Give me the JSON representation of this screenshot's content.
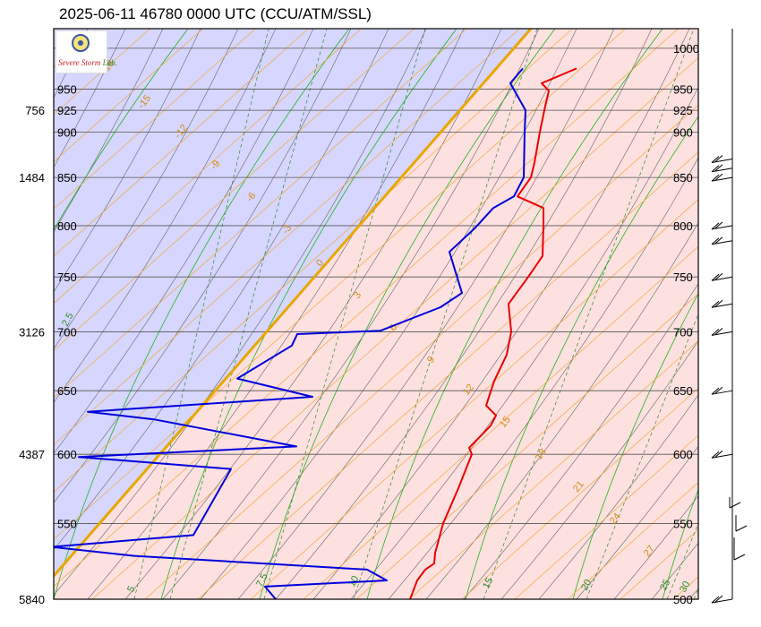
{
  "title": "2025-06-11 46780 0000 UTC (CCU/ATM/SSL)",
  "logo": {
    "text_part1": "Severe Storm",
    "text_part2": " Lab."
  },
  "chart_data": {
    "type": "line",
    "title": "2025-06-11 46780 0000 UTC (CCU/ATM/SSL)",
    "pressure_levels": [
      1000,
      950,
      925,
      900,
      850,
      800,
      750,
      700,
      650,
      600,
      550,
      500
    ],
    "height_labels": [
      {
        "p": 500,
        "label": "5840"
      },
      {
        "p": 600,
        "label": "4387"
      },
      {
        "p": 700,
        "label": "3126"
      },
      {
        "p": 850,
        "label": "1484"
      },
      {
        "p": 925,
        "label": "756"
      }
    ],
    "x_tick_labels": [
      "5",
      "7.5",
      "10",
      "15",
      "20",
      "25",
      "30"
    ],
    "mixing_ratio_labels": [
      "2.5",
      "5",
      "7.5",
      "10",
      "15",
      "20",
      "25",
      "30"
    ],
    "isotherm_labels": [
      "-18",
      "-15",
      "-12",
      "-9",
      "-6",
      "-3",
      "0",
      "3",
      "6",
      "9",
      "12",
      "15",
      "18",
      "21",
      "24",
      "27"
    ],
    "zero_isotherm_color": "#e8a800",
    "cold_region_color": "#d6d6ff",
    "warm_region_color": "#fde0e0",
    "series": [
      {
        "color": "#ee0000",
        "points": [
          {
            "p": 975,
            "x": 644
          },
          {
            "p": 957,
            "x": 605
          },
          {
            "p": 948,
            "x": 613
          },
          {
            "p": 925,
            "x": 608
          },
          {
            "p": 900,
            "x": 603
          },
          {
            "p": 866,
            "x": 597
          },
          {
            "p": 850,
            "x": 593
          },
          {
            "p": 830,
            "x": 578
          },
          {
            "p": 818,
            "x": 607
          },
          {
            "p": 800,
            "x": 607
          },
          {
            "p": 770,
            "x": 606
          },
          {
            "p": 750,
            "x": 590
          },
          {
            "p": 725,
            "x": 568
          },
          {
            "p": 700,
            "x": 571
          },
          {
            "p": 680,
            "x": 566
          },
          {
            "p": 658,
            "x": 552
          },
          {
            "p": 638,
            "x": 543
          },
          {
            "p": 630,
            "x": 554
          },
          {
            "p": 622,
            "x": 548
          },
          {
            "p": 605,
            "x": 524
          },
          {
            "p": 600,
            "x": 527
          },
          {
            "p": 575,
            "x": 512
          },
          {
            "p": 550,
            "x": 495
          },
          {
            "p": 530,
            "x": 486
          },
          {
            "p": 523,
            "x": 485
          },
          {
            "p": 519,
            "x": 475
          },
          {
            "p": 512,
            "x": 466
          },
          {
            "p": 500,
            "x": 458
          }
        ]
      },
      {
        "color": "#0000dd",
        "points": [
          {
            "p": 975,
            "x": 584
          },
          {
            "p": 957,
            "x": 570
          },
          {
            "p": 925,
            "x": 587
          },
          {
            "p": 900,
            "x": 586
          },
          {
            "p": 850,
            "x": 585
          },
          {
            "p": 830,
            "x": 574
          },
          {
            "p": 818,
            "x": 551
          },
          {
            "p": 798,
            "x": 531
          },
          {
            "p": 774,
            "x": 502
          },
          {
            "p": 735,
            "x": 516
          },
          {
            "p": 722,
            "x": 492
          },
          {
            "p": 701,
            "x": 425
          },
          {
            "p": 698,
            "x": 332
          },
          {
            "p": 688,
            "x": 326
          },
          {
            "p": 660,
            "x": 265
          },
          {
            "p": 645,
            "x": 349
          },
          {
            "p": 633,
            "x": 98
          },
          {
            "p": 627,
            "x": 172
          },
          {
            "p": 606,
            "x": 331
          },
          {
            "p": 598,
            "x": 88
          },
          {
            "p": 589,
            "x": 258
          },
          {
            "p": 542,
            "x": 216
          },
          {
            "p": 534,
            "x": 57
          },
          {
            "p": 528,
            "x": 150
          },
          {
            "p": 519,
            "x": 410
          },
          {
            "p": 512,
            "x": 432
          },
          {
            "p": 508,
            "x": 296
          },
          {
            "p": 500,
            "x": 308
          }
        ]
      }
    ],
    "wind_barbs_p": [
      500,
      600,
      650,
      700,
      725,
      750,
      785,
      800,
      850,
      860,
      870
    ]
  }
}
